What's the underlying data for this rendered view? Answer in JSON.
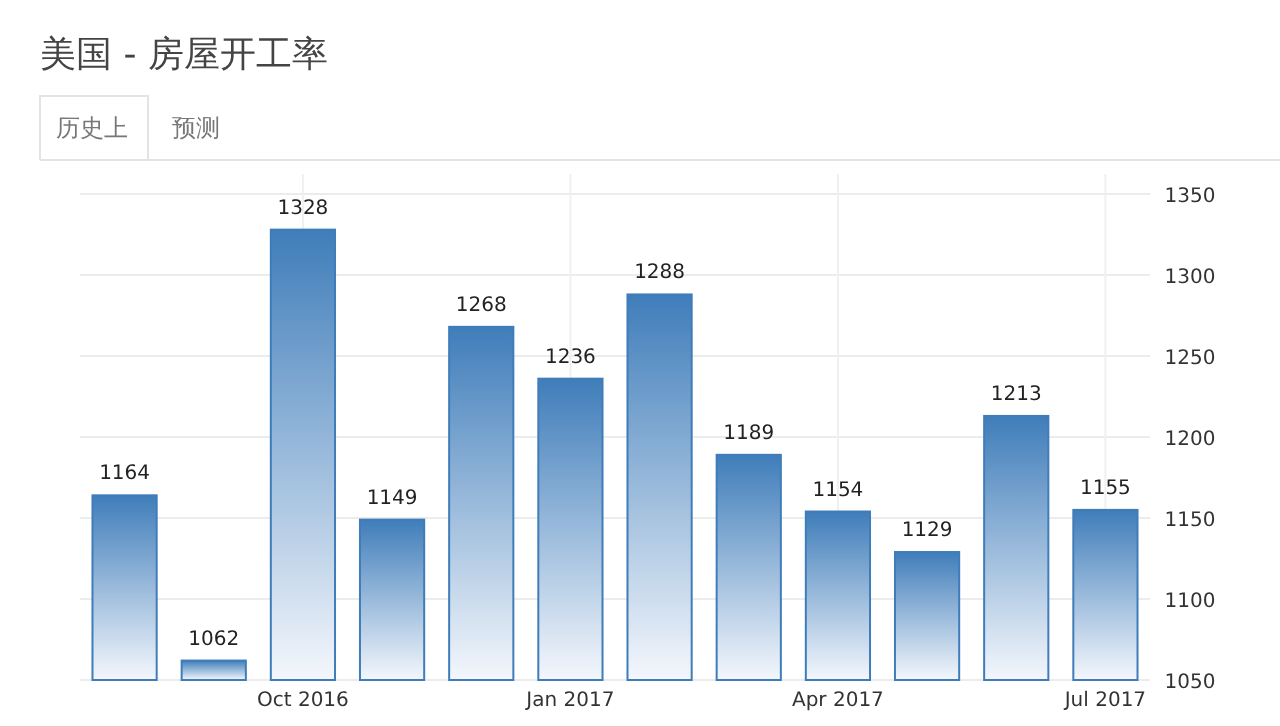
{
  "chart_data": {
    "type": "bar",
    "title": "美国 - 房屋开工率",
    "annotations": [
      "历史上",
      "预测"
    ],
    "categories": [
      null,
      null,
      "Oct 2016",
      null,
      null,
      "Jan 2017",
      null,
      null,
      "Apr 2017",
      null,
      null,
      "Jul 2017"
    ],
    "values": [
      1164,
      1062,
      1328,
      1149,
      1268,
      1236,
      1288,
      1189,
      1154,
      1129,
      1213,
      1155
    ],
    "color": "#3f7dba",
    "ylim": [
      1050,
      1350
    ],
    "yticks": [
      1050,
      1100,
      1150,
      1200,
      1250,
      1300,
      1350
    ],
    "grid": true,
    "data_labels": true
  }
}
